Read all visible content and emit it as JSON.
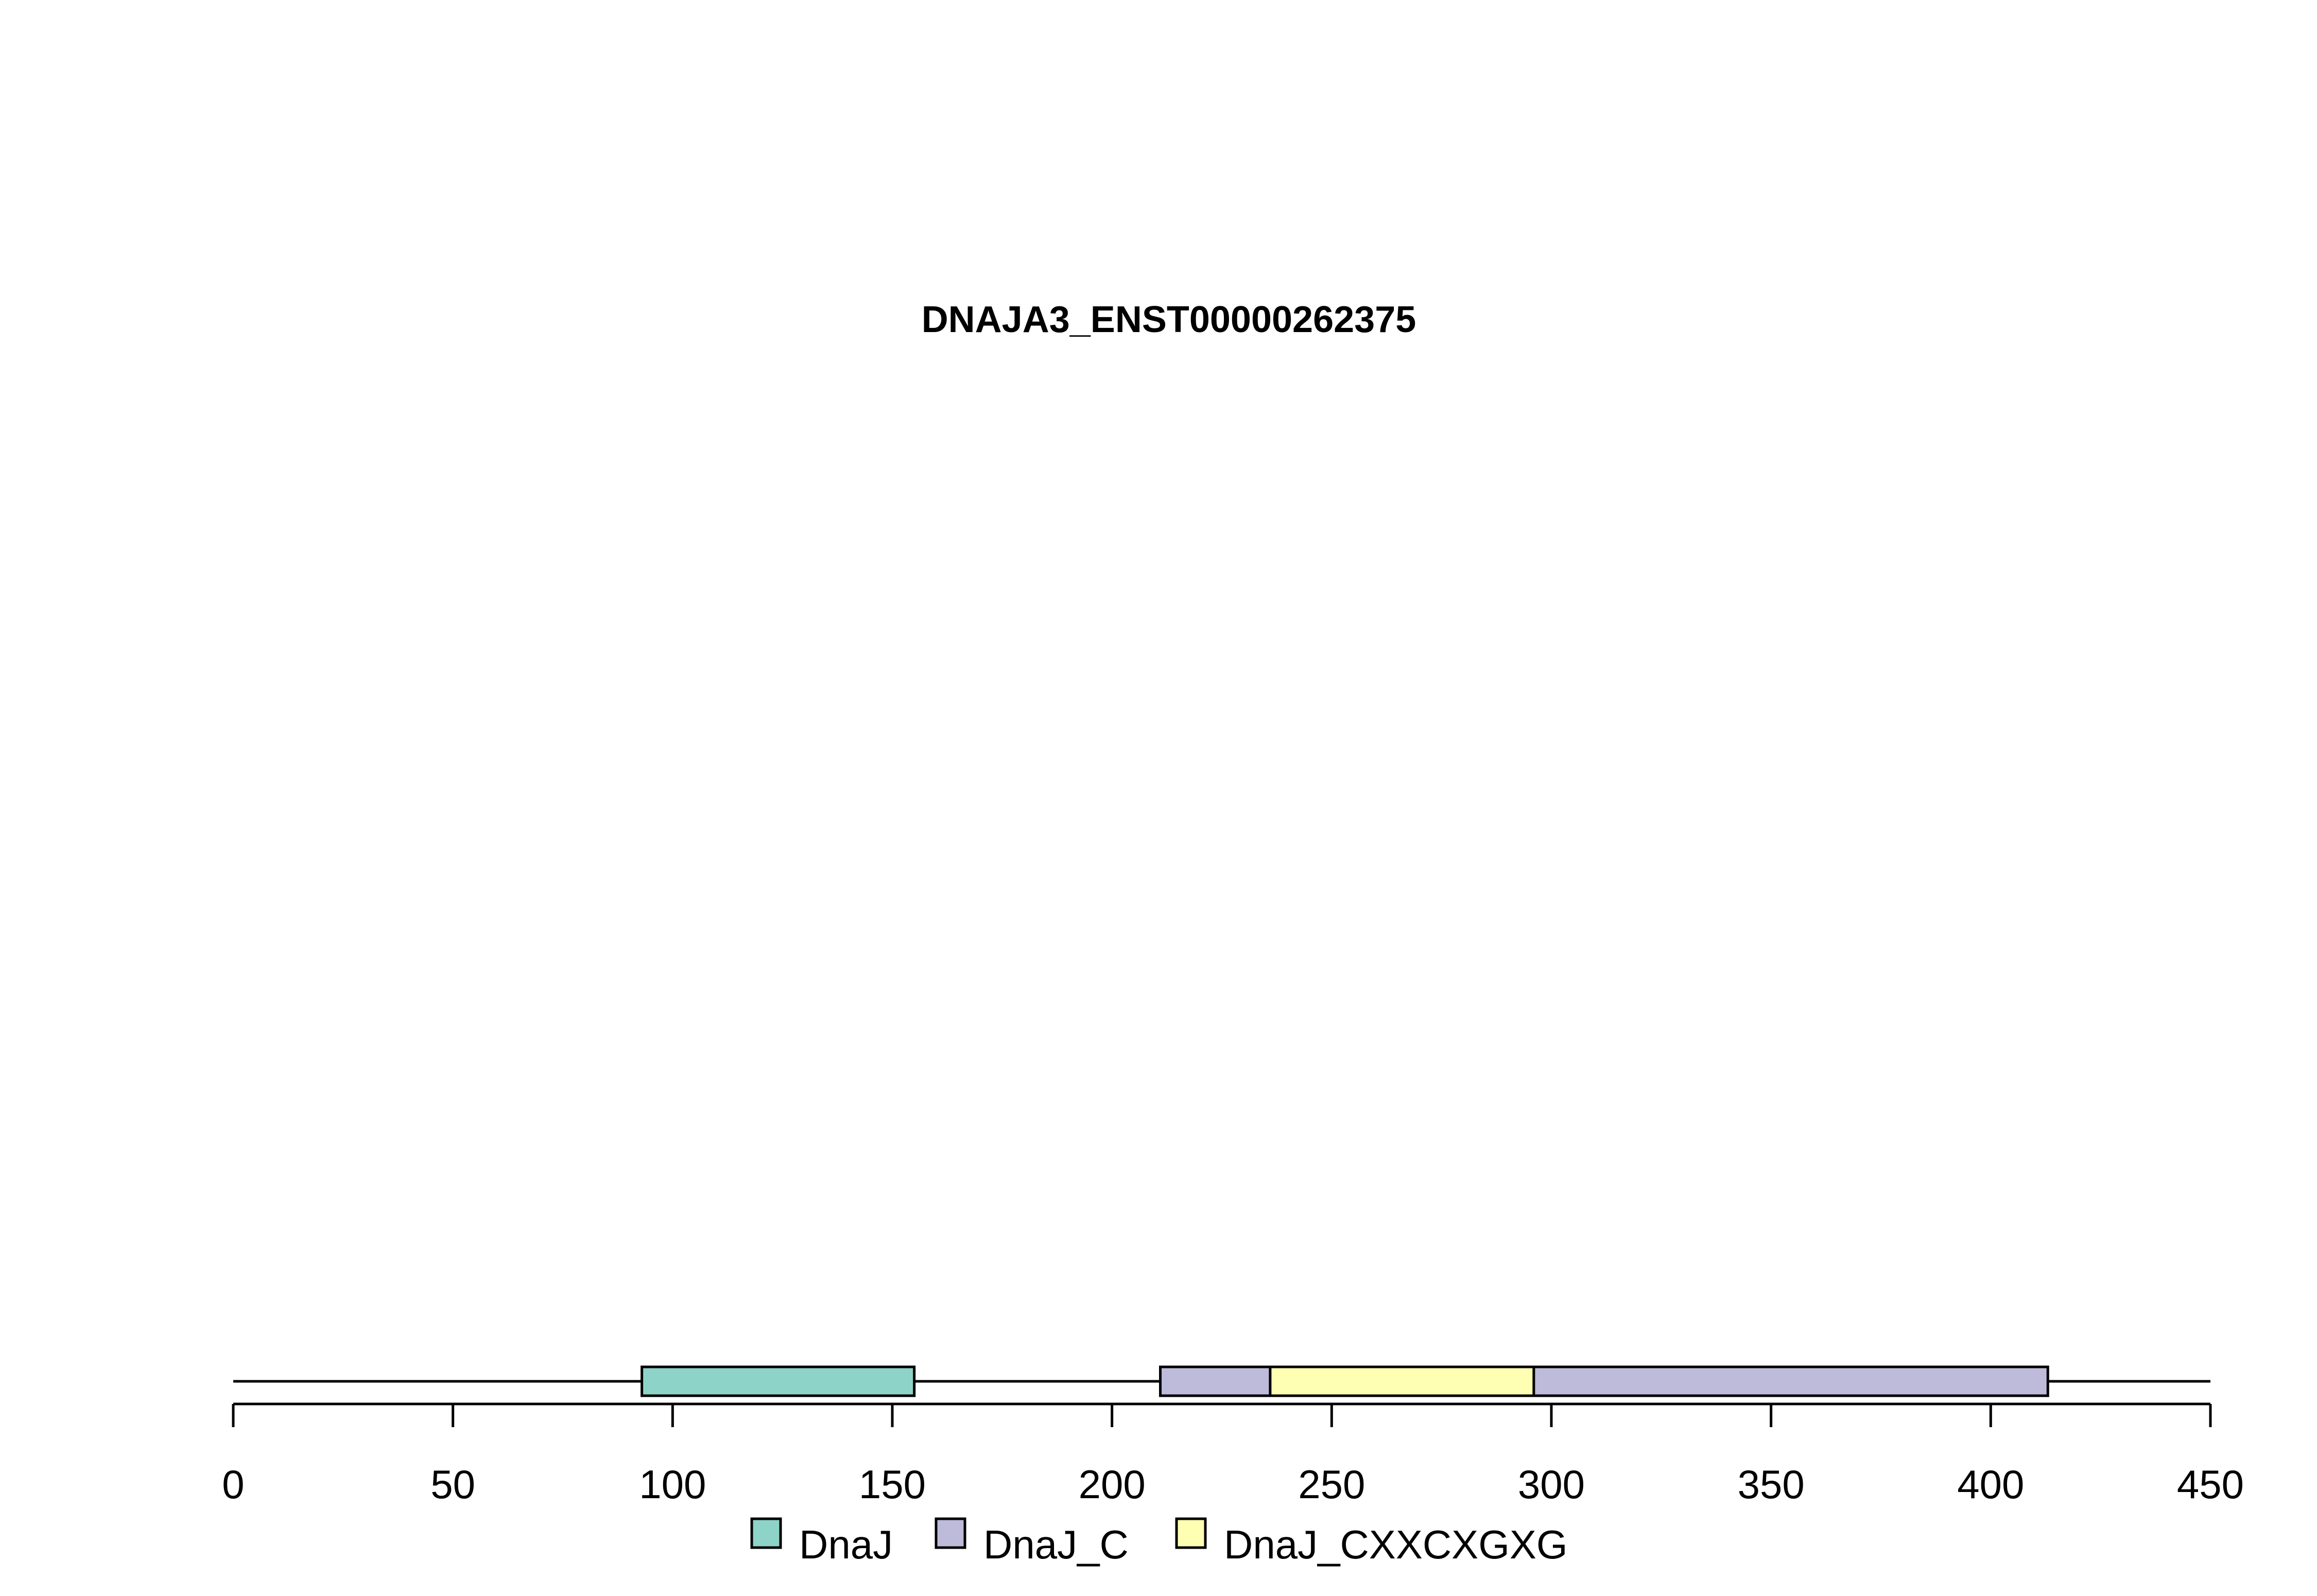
{
  "title": "DNAJA3_ENST00000262375",
  "colors": {
    "backbone": "#000000",
    "DnaJ": "#8dd3c7",
    "DnaJ_C": "#bebada",
    "DnaJ_CXXCXGXG": "#ffffb3"
  },
  "chart_data": {
    "type": "domain-track",
    "title": "DNAJA3_ENST00000262375",
    "xlim": [
      0,
      450
    ],
    "protein_length": 450,
    "ticks": [
      0,
      50,
      100,
      150,
      200,
      250,
      300,
      350,
      400,
      450
    ],
    "tick_labels": [
      "0",
      "50",
      "100",
      "150",
      "200",
      "250",
      "300",
      "350",
      "400",
      "450"
    ],
    "domains": [
      {
        "name": "DnaJ",
        "start": 93,
        "end": 155
      },
      {
        "name": "DnaJ_C",
        "start": 211,
        "end": 413
      },
      {
        "name": "DnaJ_CXXCXGXG",
        "start": 236,
        "end": 296
      }
    ],
    "legend": {
      "position": "bottom-center",
      "entries": [
        "DnaJ",
        "DnaJ_C",
        "DnaJ_CXXCXGXG"
      ]
    }
  }
}
